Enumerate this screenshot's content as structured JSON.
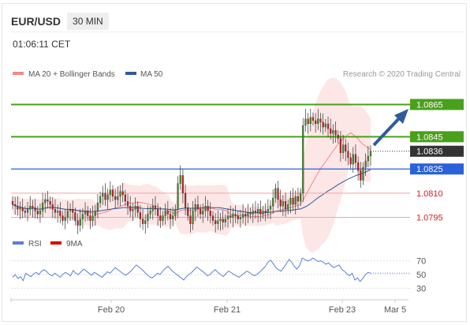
{
  "header": {
    "symbol": "EUR/USD",
    "timeframe": "30 MIN",
    "time": "01:06:11 CET"
  },
  "legend": {
    "items": [
      {
        "name": "MA 20 + Bollinger Bands",
        "color": "#f08a8a"
      },
      {
        "name": "MA 50",
        "color": "#2f5b9a"
      }
    ],
    "research": "Research © 2020 Trading Central"
  },
  "rsi_legend": {
    "items": [
      {
        "name": "RSI",
        "color": "#5b7fd9"
      },
      {
        "name": "9MA",
        "color": "#e00000"
      }
    ]
  },
  "chart_data": {
    "type": "candlestick",
    "ylim": [
      1.0785,
      1.0875
    ],
    "x_ticks": [
      "Feb 20",
      "Feb 21",
      "Feb 23",
      "Mar 5"
    ],
    "levels": [
      {
        "value": 1.0865,
        "label": "1.0865",
        "color": "#4aa01a",
        "kind": "resistance"
      },
      {
        "value": 1.0845,
        "label": "1.0845",
        "color": "#4aa01a",
        "kind": "resistance"
      },
      {
        "value": 1.0836,
        "label": "1.0836",
        "color": "#333333",
        "kind": "last"
      },
      {
        "value": 1.0825,
        "label": "1.0825",
        "color": "#2a62d9",
        "kind": "pivot"
      },
      {
        "value": 1.081,
        "label": "1.0810",
        "color": "#d62020",
        "kind": "support"
      },
      {
        "value": 1.0795,
        "label": "1.0795",
        "color": "#d62020",
        "kind": "support"
      }
    ],
    "close": [
      1.0803,
      1.0802,
      1.08,
      1.0801,
      1.0799,
      1.0798,
      1.08,
      1.0802,
      1.0801,
      1.0799,
      1.0797,
      1.0799,
      1.0804,
      1.0806,
      1.0805,
      1.0803,
      1.08,
      1.0798,
      1.0799,
      1.0796,
      1.0793,
      1.0795,
      1.0799,
      1.08,
      1.0798,
      1.0793,
      1.079,
      1.0794,
      1.0797,
      1.0799,
      1.0796,
      1.0793,
      1.0796,
      1.0799,
      1.0804,
      1.0808,
      1.081,
      1.0806,
      1.0809,
      1.0812,
      1.0808,
      1.0806,
      1.0808,
      1.0811,
      1.0809,
      1.0805,
      1.0802,
      1.0799,
      1.08,
      1.0802,
      1.0798,
      1.0794,
      1.0791,
      1.0793,
      1.0797,
      1.0799,
      1.0802,
      1.08,
      1.0796,
      1.0793,
      1.0796,
      1.0799,
      1.0797,
      1.0794,
      1.0796,
      1.08,
      1.0816,
      1.0821,
      1.081,
      1.0801,
      1.0796,
      1.0791,
      1.0799,
      1.0803,
      1.08,
      1.0797,
      1.0799,
      1.0802,
      1.0799,
      1.0796,
      1.0793,
      1.0791,
      1.0793,
      1.0794,
      1.0792,
      1.0794,
      1.0796,
      1.0795,
      1.0797,
      1.0796,
      1.0794,
      1.0795,
      1.0797,
      1.0796,
      1.0798,
      1.0797,
      1.0799,
      1.0798,
      1.08,
      1.0797,
      1.0799,
      1.0798,
      1.08,
      1.0802,
      1.0807,
      1.0813,
      1.0806,
      1.0802,
      1.0805,
      1.08,
      1.0803,
      1.0807,
      1.0803,
      1.0808,
      1.0805,
      1.081,
      1.0852,
      1.0856,
      1.0853,
      1.0857,
      1.0855,
      1.0853,
      1.0856,
      1.0854,
      1.0851,
      1.0853,
      1.085,
      1.0847,
      1.0849,
      1.0846,
      1.0844,
      1.0835,
      1.084,
      1.0836,
      1.0832,
      1.0828,
      1.0834,
      1.0829,
      1.0824,
      1.0818,
      1.0826,
      1.083,
      1.0833,
      1.0836
    ]
  },
  "rsi_data": {
    "ylim": [
      20,
      80
    ],
    "levels": [
      {
        "value": 70,
        "label": "70"
      },
      {
        "value": 50,
        "label": "50"
      },
      {
        "value": 30,
        "label": "30"
      }
    ],
    "values": [
      46,
      50,
      44,
      47,
      41,
      52,
      49,
      47,
      51,
      53,
      50,
      55,
      57,
      54,
      50,
      48,
      52,
      49,
      46,
      50,
      53,
      51,
      48,
      56,
      52,
      50,
      54,
      58,
      55,
      52,
      49,
      53,
      51,
      48,
      46,
      50,
      54,
      52,
      56,
      60,
      57,
      54,
      51,
      49,
      52,
      55,
      60,
      64,
      61,
      58,
      54,
      50,
      47,
      45,
      48,
      52,
      50,
      55,
      59,
      62,
      58,
      54,
      51,
      48,
      45,
      42,
      47,
      50,
      53,
      57,
      61,
      58,
      55,
      52,
      48,
      50,
      54,
      57,
      53,
      50,
      47,
      51,
      55,
      53,
      50,
      48,
      46,
      49,
      52,
      55,
      53,
      50,
      48,
      51,
      54,
      58,
      62,
      68,
      71,
      66,
      60,
      57,
      55,
      60,
      66,
      72,
      68,
      62,
      58,
      63,
      74,
      72,
      70,
      71,
      74,
      72,
      69,
      70,
      68,
      65,
      67,
      63,
      60,
      62,
      64,
      58,
      55,
      51,
      48,
      52,
      42,
      45,
      40,
      44,
      50,
      53,
      52
    ]
  }
}
